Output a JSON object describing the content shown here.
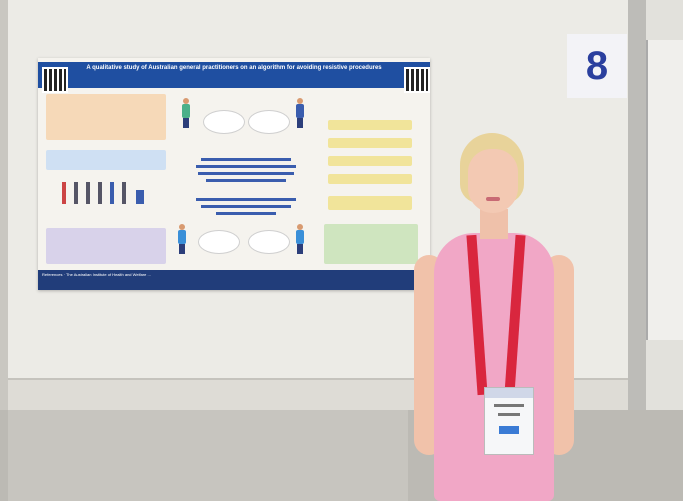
{
  "board": {
    "number": "8"
  },
  "poster": {
    "title": "A qualitative study of Australian general practitioners on an algorithm for avoiding resistive procedures",
    "footer": "References · The Australian Institute of Health and Welfare ..."
  },
  "colors": {
    "header": "#1f4fa1",
    "footer": "#213d7a",
    "board_number": "#2a3f9e",
    "dress": "#f1a7c6",
    "lanyard": "#d9263e"
  }
}
